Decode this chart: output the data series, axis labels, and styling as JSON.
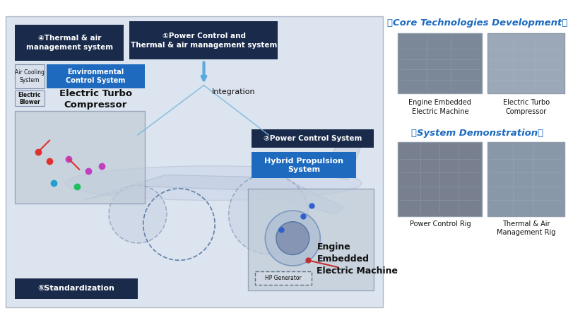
{
  "dark_navy": "#1a2a4a",
  "bright_blue": "#1e6abf",
  "white": "#ffffff",
  "black": "#111111",
  "title_core": "【Core Technologies Development】",
  "title_system": "【System Demonstration】",
  "box1_text": "①Power Control and\nThermal & air management system",
  "box2_text": "②Power Control System",
  "box3_text": "④Thermal & air\nmanagement system",
  "box4_text": "⑤Standardization",
  "box_env_text": "Environmental\nControl System",
  "box_turbo_text": "Electric Turbo\nCompressor",
  "box_hybrid_text": "Hybrid Propulsion\nSystem",
  "box_engine_text": "Engine\nEmbedded\nElectric Machine",
  "integration_text": "Integration",
  "air_cooling_text": "Air Cooling\nSystem",
  "electric_blower_text": "Electric\nBlower",
  "hp_generator_text": "HP Generator",
  "cap_engine_embedded": "Engine Embedded\nElectric Machine",
  "cap_electric_turbo": "Electric Turbo\nCompressor",
  "cap_power_control": "Power Control Rig",
  "cap_thermal": "Thermal & Air\nManagement Rig"
}
